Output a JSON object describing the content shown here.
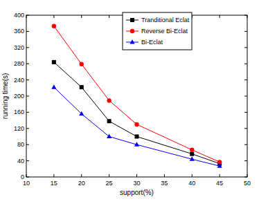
{
  "chart_data": {
    "type": "line",
    "x_label": "support(%)",
    "y_label": "running time(s)",
    "x": [
      15,
      20,
      25,
      30,
      40,
      45
    ],
    "series": [
      {
        "name": "Tranditional Eclat",
        "color": "#000000",
        "marker": "square",
        "values": [
          284,
          222,
          138,
          100,
          57,
          33
        ]
      },
      {
        "name": "Reverse Bi-Eclat",
        "color": "#ff0000",
        "marker": "circle",
        "values": [
          373,
          279,
          189,
          130,
          67,
          37
        ]
      },
      {
        "name": "Bi-Eclat",
        "color": "#0000ff",
        "marker": "triangle",
        "values": [
          222,
          156,
          100,
          80,
          44,
          27
        ]
      }
    ],
    "xlim": [
      10,
      50
    ],
    "xticks": [
      10,
      15,
      20,
      25,
      30,
      35,
      40,
      45,
      50
    ],
    "ylim": [
      0,
      400
    ],
    "yticks": [
      0,
      40,
      80,
      120,
      160,
      200,
      240,
      280,
      320,
      360,
      400
    ],
    "grid": false,
    "legend": "top"
  }
}
